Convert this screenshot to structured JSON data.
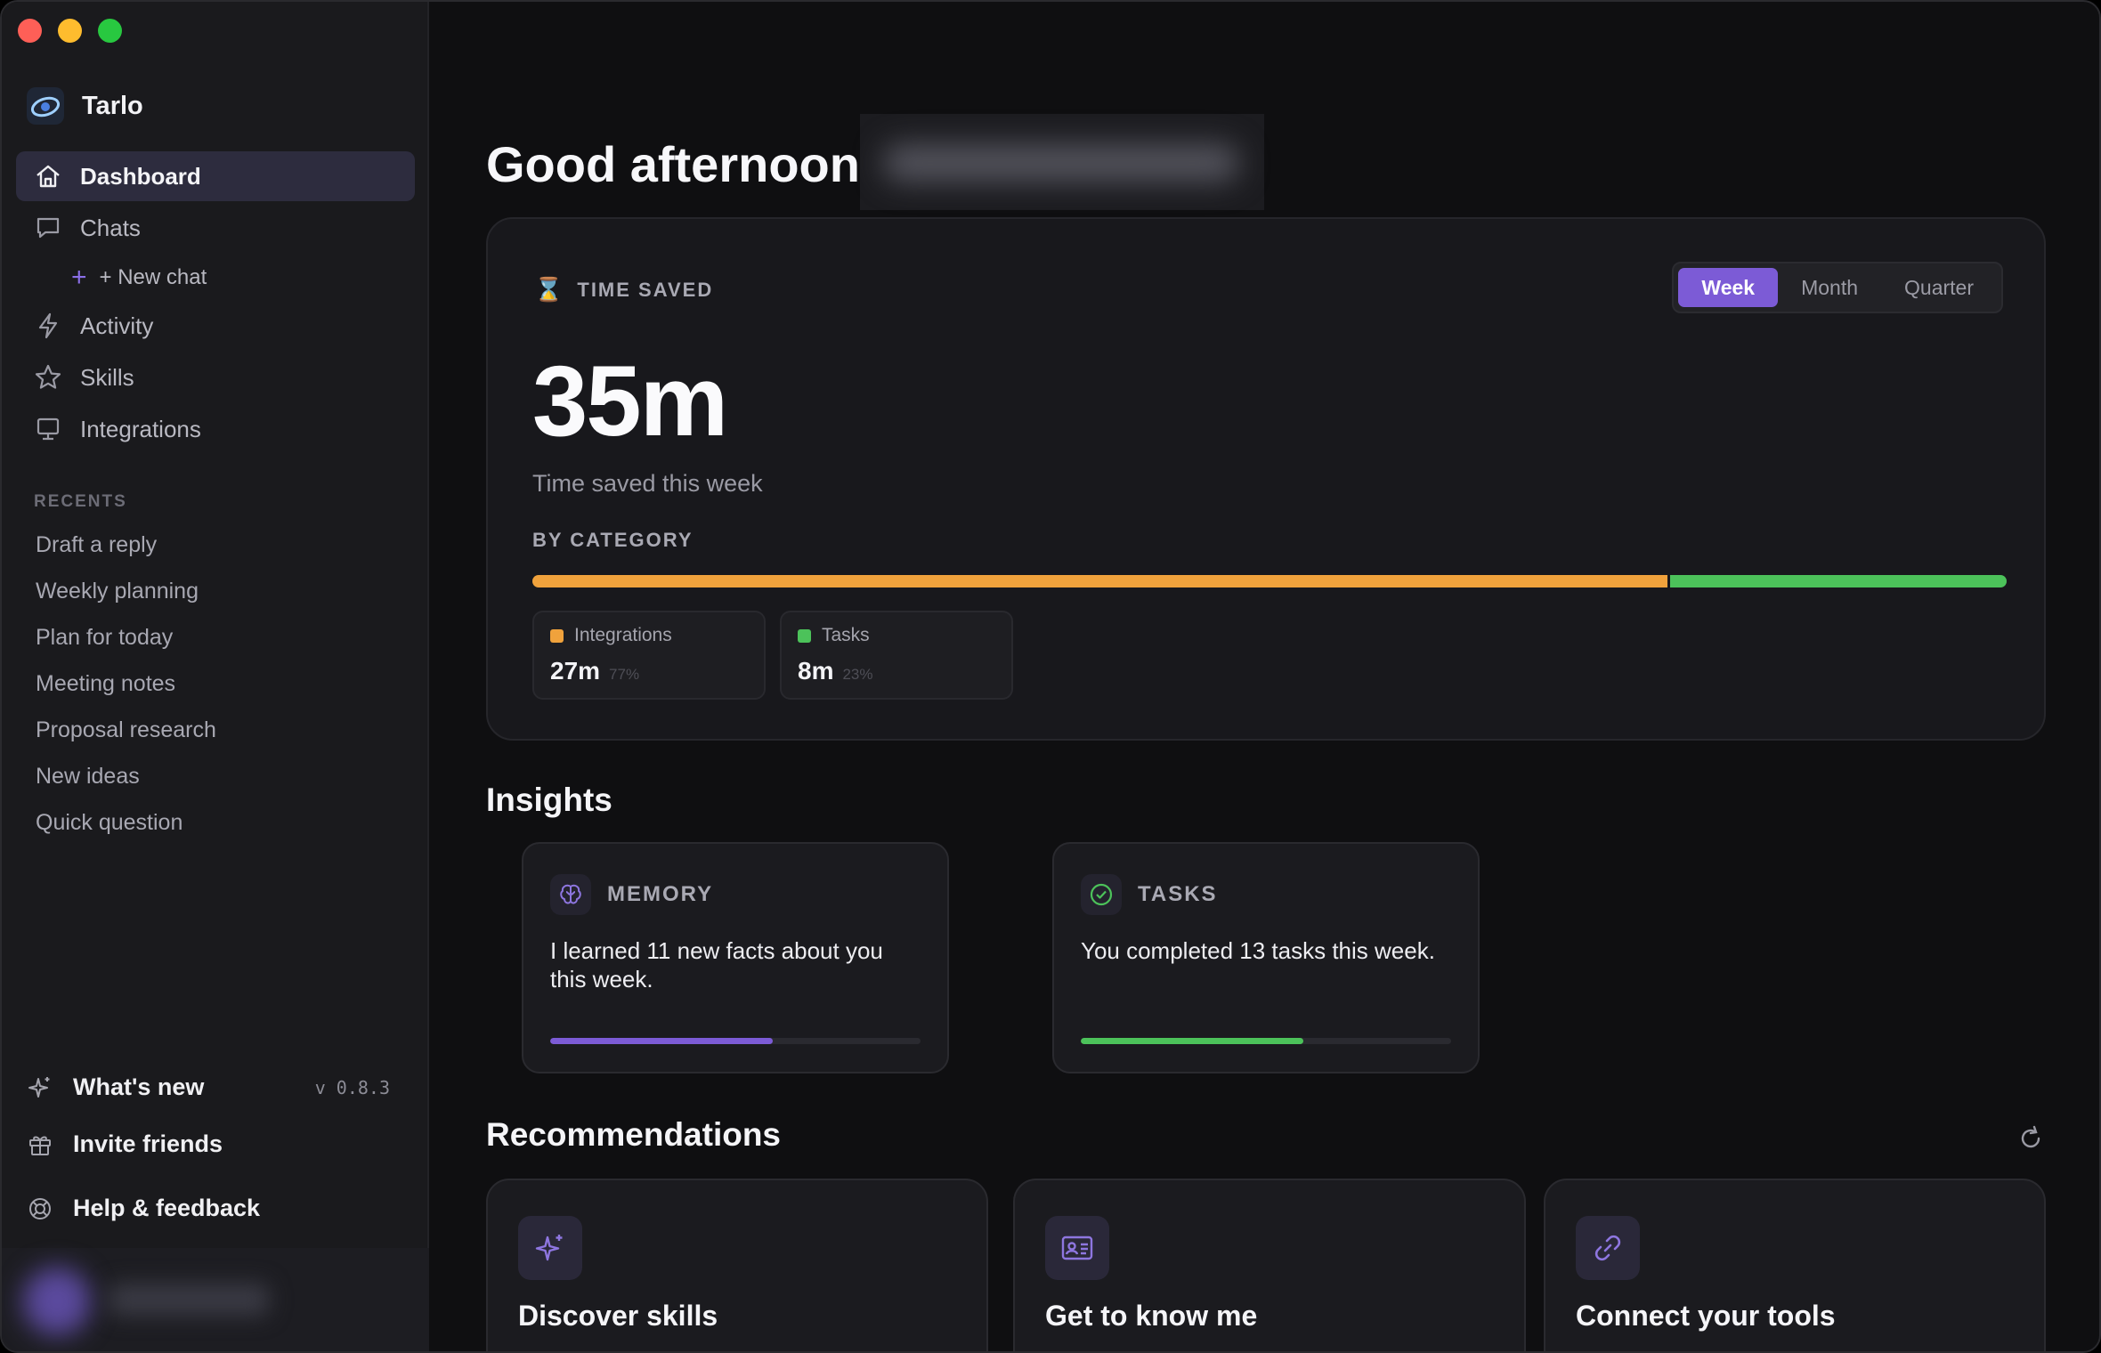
{
  "app": {
    "name": "Tarlo"
  },
  "sidebar": {
    "nav": [
      {
        "label": "Dashboard",
        "icon": "home-icon",
        "active": true
      },
      {
        "label": "Chats",
        "icon": "chat-icon"
      },
      {
        "label": "Activity",
        "icon": "bolt-icon"
      },
      {
        "label": "Skills",
        "icon": "star-icon"
      },
      {
        "label": "Integrations",
        "icon": "monitor-icon"
      }
    ],
    "new_chat_label": "+ New chat",
    "recents_heading": "RECENTS",
    "recents": [
      "Draft a reply",
      "Weekly planning",
      "Plan for today",
      "Meeting notes",
      "Proposal research",
      "New ideas",
      "Quick question"
    ],
    "whats_new_label": "What's new",
    "version": "v 0.8.3",
    "invite_label": "Invite friends",
    "help_label": "Help & feedback"
  },
  "main": {
    "greeting": "Good afternoon",
    "time_saved": {
      "label": "TIME SAVED",
      "periods": [
        "Week",
        "Month",
        "Quarter"
      ],
      "selected_period": "Week",
      "value": "35m",
      "subtitle": "Time saved this week",
      "by_category_label": "BY CATEGORY",
      "categories": [
        {
          "name": "Integrations",
          "value": "27m",
          "pct": "77%",
          "fraction": 0.77,
          "color": "#f0a23c"
        },
        {
          "name": "Tasks",
          "value": "8m",
          "pct": "23%",
          "fraction": 0.23,
          "color": "#4cc25a"
        }
      ]
    },
    "insights_heading": "Insights",
    "insights": [
      {
        "title": "MEMORY",
        "icon": "brain-icon",
        "text": "I learned 11 new facts about you this week.",
        "progress": 0.6,
        "color": "#7c5bd6"
      },
      {
        "title": "TASKS",
        "icon": "check-circle-icon",
        "text": "You completed 13 tasks this week.",
        "progress": 0.6,
        "color": "#4cc25a"
      }
    ],
    "recommendations_heading": "Recommendations",
    "recommendations": [
      {
        "title": "Discover skills",
        "icon": "sparkle-icon"
      },
      {
        "title": "Get to know me",
        "icon": "id-card-icon"
      },
      {
        "title": "Connect your tools",
        "icon": "link-icon"
      }
    ]
  }
}
